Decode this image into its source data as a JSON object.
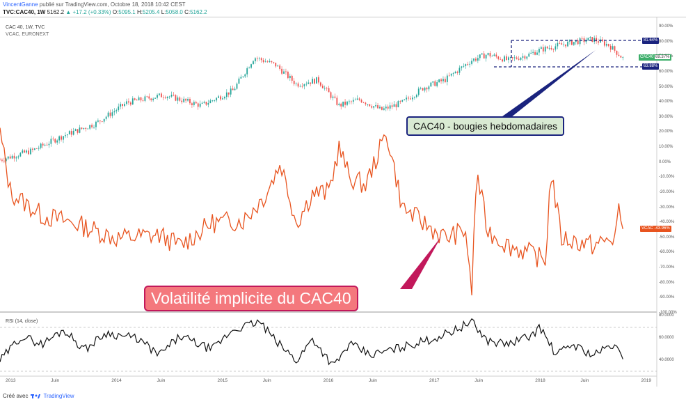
{
  "header": {
    "user": "VincentGanne",
    "published": "publié sur TradingView.com, Octobre 18, 2018 10:42 CEST",
    "symbol": "TVC:CAC40, 1W",
    "last": "5162.2",
    "change": "+17.2 (+0.33%)",
    "open_label": "O:",
    "open": "5095.1",
    "high_label": "H:",
    "high": "5205.4",
    "low_label": "L:",
    "low": "5058.0",
    "close_label": "C:",
    "close": "5162.2"
  },
  "legend": {
    "main": "CAC 40, 1W, TVC",
    "overlay": "VCAC, EURONEXT",
    "rsi": "RSI (14, close)"
  },
  "badges": {
    "top": "81.64%",
    "cac": "CAC40",
    "cac_value": "69.37%",
    "low": "63.88%",
    "vcac": "VCAC",
    "vcac_value": "-43.96%"
  },
  "callouts": {
    "candles": "CAC40 - bougies hebdomadaires",
    "vol": "Volatilité implicite du CAC40"
  },
  "footer": {
    "created": "Créé avec",
    "brand": "TradingView"
  },
  "colors": {
    "up": "#26a69a",
    "down": "#ef5350",
    "vcac": "#e8541f",
    "rsi": "#111111",
    "box": "#1a237e",
    "callout_green_bg": "#d9ead3",
    "callout_red_bg": "#f4787d"
  },
  "chart_data": [
    {
      "type": "candlestick",
      "series": [
        {
          "name": "CAC 40, 1W, TVC"
        }
      ],
      "y_axis": {
        "unit": "%",
        "ylim": [
          -100,
          90
        ],
        "ticks": [
          "90.00%",
          "80.00%",
          "70.00%",
          "60.00%",
          "50.00%",
          "40.00%",
          "30.00%",
          "20.00%",
          "10.00%",
          "0.00%",
          "-10.00%",
          "-20.00%",
          "-30.00%",
          "-40.00%",
          "-50.00%",
          "-60.00%",
          "-70.00%",
          "-80.00%",
          "-90.00%",
          "-100.00%"
        ]
      },
      "x_axis": {
        "ticks": [
          "2013",
          "Juin",
          "2014",
          "Juin",
          "2015",
          "Juin",
          "2016",
          "Juin",
          "2017",
          "Juin",
          "2018",
          "Juin",
          "2019"
        ]
      },
      "approx_path_pct": [
        [
          2012.9,
          2
        ],
        [
          2013.2,
          8
        ],
        [
          2013.5,
          18
        ],
        [
          2013.8,
          26
        ],
        [
          2014.1,
          40
        ],
        [
          2014.45,
          45
        ],
        [
          2014.8,
          38
        ],
        [
          2015.1,
          48
        ],
        [
          2015.3,
          70
        ],
        [
          2015.5,
          65
        ],
        [
          2015.7,
          52
        ],
        [
          2015.9,
          55
        ],
        [
          2016.1,
          38
        ],
        [
          2016.3,
          42
        ],
        [
          2016.5,
          35
        ],
        [
          2016.7,
          40
        ],
        [
          2016.9,
          50
        ],
        [
          2017.1,
          55
        ],
        [
          2017.35,
          68
        ],
        [
          2017.5,
          72
        ],
        [
          2017.7,
          68
        ],
        [
          2017.9,
          72
        ],
        [
          2018.0,
          75
        ],
        [
          2018.3,
          80
        ],
        [
          2018.5,
          82
        ],
        [
          2018.65,
          78
        ],
        [
          2018.78,
          69.37
        ]
      ],
      "last_value": "69.37%"
    },
    {
      "type": "line",
      "series": [
        {
          "name": "VCAC"
        }
      ],
      "last_value": "-43.96%",
      "approx_path_pct": [
        [
          2012.9,
          20
        ],
        [
          2013.0,
          -20
        ],
        [
          2013.3,
          -35
        ],
        [
          2013.6,
          -40
        ],
        [
          2014.0,
          -50
        ],
        [
          2014.4,
          -48
        ],
        [
          2014.6,
          -55
        ],
        [
          2014.9,
          -40
        ],
        [
          2015.2,
          -38
        ],
        [
          2015.4,
          -22
        ],
        [
          2015.55,
          0
        ],
        [
          2015.7,
          -40
        ],
        [
          2015.85,
          -20
        ],
        [
          2016.0,
          -20
        ],
        [
          2016.1,
          10
        ],
        [
          2016.2,
          -10
        ],
        [
          2016.35,
          -15
        ],
        [
          2016.55,
          20
        ],
        [
          2016.7,
          -30
        ],
        [
          2016.9,
          -40
        ],
        [
          2017.1,
          -50
        ],
        [
          2017.3,
          -45
        ],
        [
          2017.35,
          -90
        ],
        [
          2017.4,
          -5
        ],
        [
          2017.5,
          -45
        ],
        [
          2017.7,
          -55
        ],
        [
          2017.9,
          -60
        ],
        [
          2018.05,
          -65
        ],
        [
          2018.1,
          -5
        ],
        [
          2018.2,
          -50
        ],
        [
          2018.5,
          -55
        ],
        [
          2018.7,
          -50
        ],
        [
          2018.75,
          -30
        ],
        [
          2018.78,
          -43.96
        ]
      ]
    },
    {
      "type": "line",
      "series": [
        {
          "name": "RSI (14, close)"
        }
      ],
      "y_axis": {
        "ticks": [
          "80.0000",
          "60.0000",
          "40.0000"
        ],
        "ylim": [
          30,
          80
        ]
      },
      "approx_path": [
        [
          2012.9,
          40
        ],
        [
          2013.1,
          62
        ],
        [
          2013.3,
          55
        ],
        [
          2013.5,
          68
        ],
        [
          2013.7,
          50
        ],
        [
          2013.9,
          65
        ],
        [
          2014.2,
          60
        ],
        [
          2014.4,
          45
        ],
        [
          2014.6,
          62
        ],
        [
          2014.9,
          50
        ],
        [
          2015.1,
          68
        ],
        [
          2015.35,
          75
        ],
        [
          2015.5,
          58
        ],
        [
          2015.7,
          40
        ],
        [
          2015.85,
          60
        ],
        [
          2016.05,
          35
        ],
        [
          2016.2,
          55
        ],
        [
          2016.4,
          45
        ],
        [
          2016.6,
          50
        ],
        [
          2016.8,
          55
        ],
        [
          2017.0,
          60
        ],
        [
          2017.2,
          68
        ],
        [
          2017.35,
          75
        ],
        [
          2017.5,
          58
        ],
        [
          2017.7,
          55
        ],
        [
          2017.9,
          62
        ],
        [
          2018.0,
          70
        ],
        [
          2018.15,
          45
        ],
        [
          2018.3,
          55
        ],
        [
          2018.5,
          45
        ],
        [
          2018.7,
          55
        ],
        [
          2018.78,
          40
        ]
      ]
    }
  ]
}
